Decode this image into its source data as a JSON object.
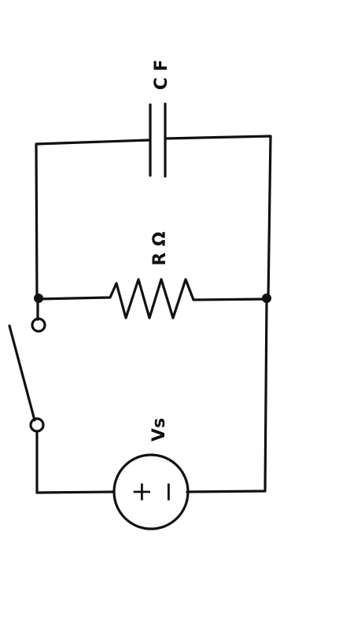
{
  "components": {
    "capacitor": {
      "label": "C F"
    },
    "resistor": {
      "label": "R Ω"
    },
    "source": {
      "label": "Vs",
      "plus_sign": "+",
      "minus_sign": "−"
    }
  },
  "colors": {
    "ink": "#111111",
    "background": "#ffffff"
  }
}
